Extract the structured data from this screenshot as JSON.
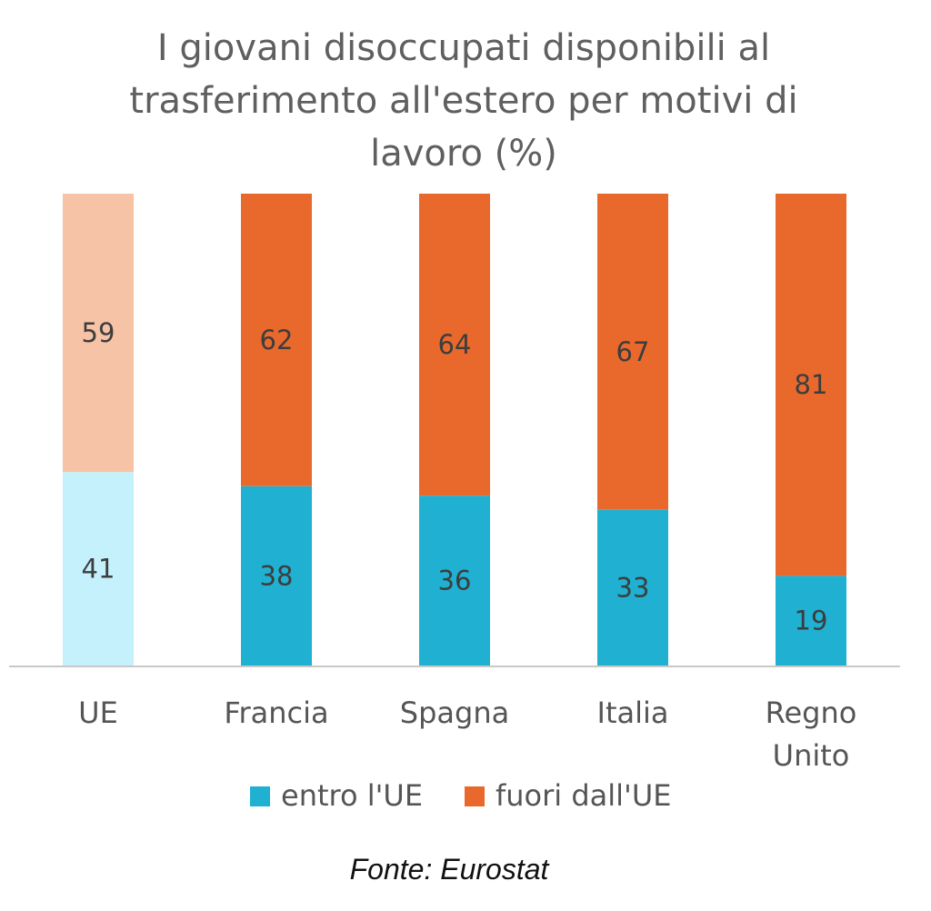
{
  "chart_data": {
    "type": "bar",
    "stacked": true,
    "title_lines": [
      "I giovani disoccupati disponibili al",
      "trasferimento all'estero per motivi di",
      "lavoro (%)"
    ],
    "categories": [
      "UE",
      "Francia",
      "Spagna",
      "Italia",
      "Regno Unito"
    ],
    "category_lines": [
      [
        "UE"
      ],
      [
        "Francia"
      ],
      [
        "Spagna"
      ],
      [
        "Italia"
      ],
      [
        "Regno",
        "Unito"
      ]
    ],
    "series": [
      {
        "name": "entro l'UE",
        "values": [
          41,
          38,
          36,
          33,
          19
        ],
        "color": "#1fb0d2",
        "highlight_color": "#c4f1fb"
      },
      {
        "name": "fuori dall'UE",
        "values": [
          59,
          62,
          64,
          67,
          81
        ],
        "color": "#e9692c",
        "highlight_color": "#f6c3a6"
      }
    ],
    "highlighted_category": "UE",
    "ylim": [
      0,
      100
    ],
    "xlabel": "",
    "ylabel": "",
    "grid": false,
    "legend_position": "bottom",
    "source": "Fonte: Eurostat"
  }
}
